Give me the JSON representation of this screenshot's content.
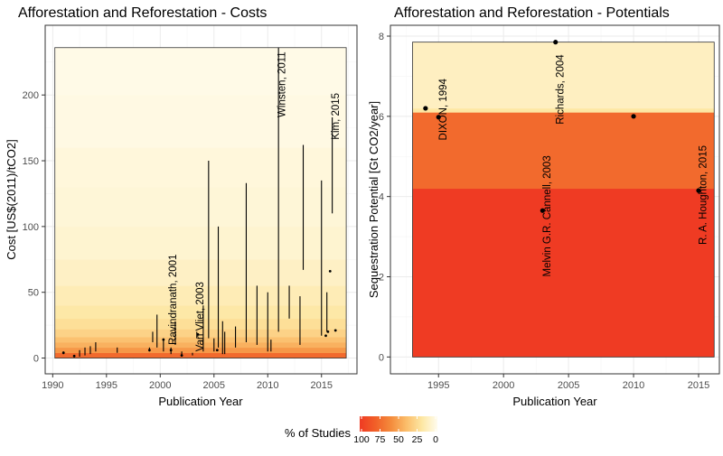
{
  "chart_data": [
    {
      "type": "range",
      "title": "Afforestation and Reforestation - Costs",
      "xlabel": "Publication Year",
      "ylabel": "Cost [US$(2011)/tCO2]",
      "xlim": [
        1989.3,
        2018.3
      ],
      "ylim": [
        -12,
        253
      ],
      "x_ticks": [
        1990,
        1995,
        2000,
        2005,
        2010,
        2015
      ],
      "y_ticks": [
        0,
        50,
        100,
        150,
        200
      ],
      "band_extent": {
        "x": [
          1990.2,
          2017.3
        ],
        "y": [
          0,
          236
        ]
      },
      "bands": [
        {
          "from": 0,
          "to": 4,
          "share": 75
        },
        {
          "from": 4,
          "to": 8,
          "share": 55
        },
        {
          "from": 8,
          "to": 12,
          "share": 45
        },
        {
          "from": 12,
          "to": 16,
          "share": 38
        },
        {
          "from": 16,
          "to": 22,
          "share": 30
        },
        {
          "from": 22,
          "to": 30,
          "share": 24
        },
        {
          "from": 30,
          "to": 40,
          "share": 19
        },
        {
          "from": 40,
          "to": 55,
          "share": 15
        },
        {
          "from": 55,
          "to": 75,
          "share": 11
        },
        {
          "from": 75,
          "to": 100,
          "share": 8
        },
        {
          "from": 100,
          "to": 130,
          "share": 6
        },
        {
          "from": 130,
          "to": 160,
          "share": 5
        },
        {
          "from": 160,
          "to": 200,
          "share": 3
        },
        {
          "from": 200,
          "to": 236,
          "share": 2
        }
      ],
      "ranges": [
        {
          "x": 1991,
          "low": 3,
          "high": 5
        },
        {
          "x": 1992,
          "low": 1,
          "high": 2
        },
        {
          "x": 1992.5,
          "low": 1,
          "high": 6
        },
        {
          "x": 1993,
          "low": 2,
          "high": 8
        },
        {
          "x": 1993.5,
          "low": 3,
          "high": 9
        },
        {
          "x": 1994,
          "low": 5,
          "high": 12
        },
        {
          "x": 1996,
          "low": 4,
          "high": 8
        },
        {
          "x": 1999,
          "low": 5,
          "high": 8
        },
        {
          "x": 1999.3,
          "low": 12,
          "high": 20
        },
        {
          "x": 1999.7,
          "low": 8,
          "high": 33
        },
        {
          "x": 2000.3,
          "low": 5,
          "high": 15
        },
        {
          "x": 2001,
          "low": 3,
          "high": 8
        },
        {
          "x": 2001.4,
          "low": 10,
          "high": 28
        },
        {
          "x": 2002,
          "low": 1,
          "high": 5
        },
        {
          "x": 2003,
          "low": 2,
          "high": 4
        },
        {
          "x": 2003.4,
          "low": 15,
          "high": 20
        },
        {
          "x": 2004,
          "low": 5,
          "high": 40
        },
        {
          "x": 2004.5,
          "low": 15,
          "high": 150
        },
        {
          "x": 2005,
          "low": 5,
          "high": 15
        },
        {
          "x": 2005.4,
          "low": 8,
          "high": 100
        },
        {
          "x": 2005.8,
          "low": 3,
          "high": 28
        },
        {
          "x": 2006,
          "low": 3,
          "high": 20
        },
        {
          "x": 2007,
          "low": 8,
          "high": 24
        },
        {
          "x": 2008,
          "low": 12,
          "high": 133
        },
        {
          "x": 2009,
          "low": 10,
          "high": 55
        },
        {
          "x": 2010,
          "low": 5,
          "high": 50
        },
        {
          "x": 2010.3,
          "low": 5,
          "high": 14
        },
        {
          "x": 2011,
          "low": 20,
          "high": 236
        },
        {
          "x": 2012,
          "low": 30,
          "high": 55
        },
        {
          "x": 2013,
          "low": 10,
          "high": 47
        },
        {
          "x": 2013.3,
          "low": 67,
          "high": 162
        },
        {
          "x": 2015,
          "low": 17,
          "high": 135
        },
        {
          "x": 2015.5,
          "low": 20,
          "high": 50
        },
        {
          "x": 2016,
          "low": 110,
          "high": 183
        }
      ],
      "points": [
        {
          "x": 1991,
          "y": 4
        },
        {
          "x": 1992,
          "y": 1.5
        },
        {
          "x": 1999,
          "y": 6
        },
        {
          "x": 2000.3,
          "y": 14
        },
        {
          "x": 2001,
          "y": 6
        },
        {
          "x": 2002,
          "y": 2
        },
        {
          "x": 2003.5,
          "y": 18
        },
        {
          "x": 2005.3,
          "y": 6
        },
        {
          "x": 2015.4,
          "y": 17
        },
        {
          "x": 2015.6,
          "y": 20
        },
        {
          "x": 2015.8,
          "y": 66
        },
        {
          "x": 2016.3,
          "y": 21
        }
      ],
      "annotations": [
        {
          "text": "Ravindranath, 2001",
          "x": 2001.5,
          "y": 10
        },
        {
          "text": "Van Vliet, 2003",
          "x": 2004,
          "y": 5
        },
        {
          "text": "Winsten, 2011",
          "x": 2011.6,
          "y": 183
        },
        {
          "text": "Kim, 2015",
          "x": 2016.6,
          "y": 166
        }
      ]
    },
    {
      "type": "scatter",
      "title": "Afforestation and Reforestation - Potentials",
      "xlabel": "Publication Year",
      "ylabel": "Sequestration Potential [Gt CO2/year]",
      "xlim": [
        1991.3,
        2016.6
      ],
      "ylim": [
        -0.42,
        8.27
      ],
      "x_ticks": [
        1995,
        2000,
        2005,
        2010,
        2015
      ],
      "y_ticks": [
        0,
        2,
        4,
        6,
        8
      ],
      "band_extent": {
        "x": [
          1993,
          2016.2
        ],
        "y": [
          0,
          7.85
        ]
      },
      "bands": [
        {
          "from": 0,
          "to": 4.2,
          "share": 100
        },
        {
          "from": 4.2,
          "to": 6.1,
          "share": 75
        },
        {
          "from": 6.1,
          "to": 6.2,
          "share": 20
        },
        {
          "from": 6.2,
          "to": 7.85,
          "share": 12
        }
      ],
      "points": [
        {
          "x": 1994,
          "y": 6.2
        },
        {
          "x": 1995,
          "y": 5.98
        },
        {
          "x": 2003,
          "y": 3.65
        },
        {
          "x": 2004,
          "y": 7.85
        },
        {
          "x": 2010,
          "y": 6.0
        },
        {
          "x": 2015,
          "y": 4.15
        }
      ],
      "annotations": [
        {
          "text": "DIXON, 1994",
          "x": 1995.6,
          "y": 5.4
        },
        {
          "text": "Melvin G.R. Cannell, 2003",
          "x": 2003.6,
          "y": 2.0
        },
        {
          "text": "Richards, 2004",
          "x": 2004.6,
          "y": 5.8
        },
        {
          "text": "R. A. Houghton, 2015",
          "x": 2015.6,
          "y": 2.8
        }
      ]
    }
  ],
  "legend": {
    "title": "% of Studies",
    "labels": [
      "100",
      "75",
      "50",
      "25",
      "0"
    ],
    "colors": [
      "#ef3b23",
      "#f15f28",
      "#f48b3c",
      "#fbbd6a",
      "#fde7a3",
      "#fffcee"
    ]
  },
  "style": {
    "panel_border": "#333333",
    "grid_major": "#ebebeb",
    "grid_minor": "#f5f5f5",
    "range_line": "#000000"
  }
}
